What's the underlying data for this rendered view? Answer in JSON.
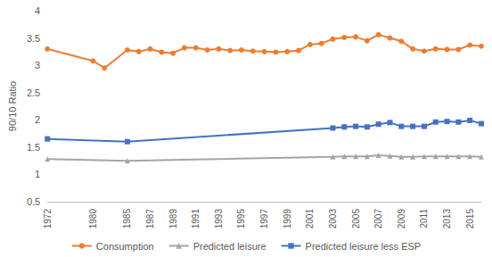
{
  "chart_data": {
    "type": "line",
    "y_label": "90/10 Ratio",
    "categories": [
      "1972",
      null,
      null,
      null,
      "1980",
      null,
      null,
      "1985",
      null,
      "1987",
      null,
      "1989",
      null,
      "1991",
      null,
      "1993",
      null,
      "1995",
      null,
      "1997",
      null,
      "1999",
      null,
      "2001",
      null,
      "2003",
      null,
      "2005",
      null,
      "2007",
      null,
      "2009",
      null,
      "2011",
      null,
      "2013",
      null,
      "2015",
      null
    ],
    "series": [
      {
        "name": "Consumption",
        "color": "#ED7D31",
        "marker": "circle",
        "values": [
          3.3,
          null,
          null,
          null,
          3.08,
          2.95,
          null,
          3.28,
          3.25,
          3.3,
          3.24,
          3.22,
          3.32,
          3.32,
          3.28,
          3.3,
          3.27,
          3.28,
          3.26,
          3.25,
          3.24,
          3.25,
          3.27,
          3.38,
          3.4,
          3.48,
          3.51,
          3.52,
          3.45,
          3.56,
          3.5,
          3.44,
          3.3,
          3.26,
          3.3,
          3.29,
          3.29,
          3.37,
          3.35
        ]
      },
      {
        "name": "Predicted leisure",
        "color": "#A5A5A5",
        "marker": "triangle",
        "values": [
          1.28,
          null,
          null,
          null,
          null,
          null,
          null,
          1.25,
          null,
          null,
          null,
          null,
          null,
          null,
          null,
          null,
          null,
          null,
          null,
          null,
          null,
          null,
          null,
          null,
          null,
          1.32,
          1.33,
          1.33,
          1.33,
          1.35,
          1.34,
          1.32,
          1.32,
          1.33,
          1.33,
          1.33,
          1.33,
          1.33,
          1.32
        ]
      },
      {
        "name": "Predicted leisure less ESP",
        "color": "#4472C4",
        "marker": "square",
        "values": [
          1.65,
          null,
          null,
          null,
          null,
          null,
          null,
          1.6,
          null,
          null,
          null,
          null,
          null,
          null,
          null,
          null,
          null,
          null,
          null,
          null,
          null,
          null,
          null,
          null,
          null,
          1.85,
          1.87,
          1.88,
          1.87,
          1.92,
          1.95,
          1.88,
          1.88,
          1.88,
          1.96,
          1.97,
          1.96,
          1.99,
          1.93
        ]
      }
    ],
    "ylim": [
      0.5,
      4
    ],
    "yticks": [
      0.5,
      1,
      1.5,
      2,
      2.5,
      3,
      3.5,
      4
    ],
    "grid": false,
    "legend": "bottom"
  }
}
